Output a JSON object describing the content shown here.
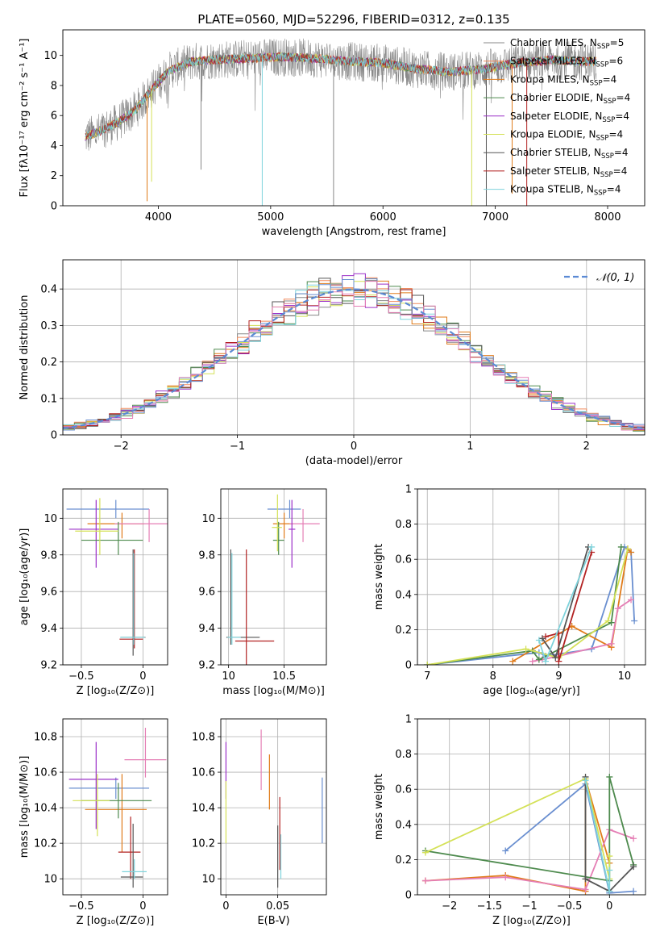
{
  "chart_data": [
    {
      "id": "spectrum",
      "type": "line",
      "title": "PLATE=0560, MJD=52296, FIBERID=0312, z=0.135",
      "xlabel": "wavelength [Angstrom, rest frame]",
      "ylabel": "Flux [fλ10⁻¹⁷ erg cm⁻² s⁻¹ A⁻¹]",
      "xlim": [
        3150,
        8330
      ],
      "ylim": [
        0,
        11.7
      ],
      "xticks": [
        4000,
        5000,
        6000,
        7000,
        8000
      ],
      "yticks": [
        0,
        2,
        4,
        6,
        8,
        10
      ],
      "grid": false,
      "legend": "upper-right",
      "legend_entries": [
        {
          "label": "Chabrier MILES, N",
          "sub": "SSP",
          "suffix": "=5",
          "color": "#888888"
        },
        {
          "label": "Salpeter MILES, N",
          "sub": "SSP",
          "suffix": "=6",
          "color": "#f08a5d"
        },
        {
          "label": "Kroupa MILES, N",
          "sub": "SSP",
          "suffix": "=4",
          "color": "#e07b1a"
        },
        {
          "label": "Chabrier ELODIE, N",
          "sub": "SSP",
          "suffix": "=4",
          "color": "#4d8a4d"
        },
        {
          "label": "Salpeter ELODIE, N",
          "sub": "SSP",
          "suffix": "=4",
          "color": "#9b30c8"
        },
        {
          "label": "Kroupa ELODIE, N",
          "sub": "SSP",
          "suffix": "=4",
          "color": "#d4e157"
        },
        {
          "label": "Chabrier STELIB, N",
          "sub": "SSP",
          "suffix": "=4",
          "color": "#555555"
        },
        {
          "label": "Salpeter STELIB, N",
          "sub": "SSP",
          "suffix": "=4",
          "color": "#b22222"
        },
        {
          "label": "Kroupa STELIB, N",
          "sub": "SSP",
          "suffix": "=4",
          "color": "#7fd3dc"
        }
      ],
      "spectrum_profile": {
        "x": [
          3350,
          3500,
          3650,
          3800,
          3950,
          4100,
          4300,
          4500,
          4800,
          5100,
          5400,
          5700,
          6000,
          6300,
          6600,
          6900,
          7200,
          7500,
          7800,
          7900
        ],
        "y": [
          4.6,
          5.0,
          5.6,
          6.4,
          7.8,
          9.0,
          9.6,
          9.7,
          9.8,
          9.9,
          9.8,
          9.6,
          9.5,
          9.1,
          8.9,
          9.1,
          9.5,
          9.7,
          9.6,
          9.6
        ]
      },
      "absorption_lines": [
        {
          "x": 3900,
          "y": 0.3
        },
        {
          "x": 3940,
          "y": 1.6
        },
        {
          "x": 4380,
          "y": 2.4
        },
        {
          "x": 4925,
          "y": 0
        },
        {
          "x": 5560,
          "y": 0
        },
        {
          "x": 6790,
          "y": 0
        },
        {
          "x": 6920,
          "y": 0
        },
        {
          "x": 7150,
          "y": 0.8
        },
        {
          "x": 7280,
          "y": 0
        }
      ]
    },
    {
      "id": "residuals",
      "type": "histogram",
      "xlabel": "(data-model)/error",
      "ylabel": "Normed distribution",
      "xlim": [
        -2.5,
        2.5
      ],
      "ylim": [
        0,
        0.48
      ],
      "xticks": [
        -2,
        -1,
        0,
        1,
        2
      ],
      "yticks": [
        0.0,
        0.1,
        0.2,
        0.3,
        0.4
      ],
      "grid": true,
      "legend": "upper-right",
      "legend_label": "𝒩(0, 1)",
      "bin_width": 0.1,
      "colors": [
        "#888888",
        "#f08a5d",
        "#e07b1a",
        "#4d8a4d",
        "#9b30c8",
        "#d4e157",
        "#555555",
        "#b22222",
        "#7fd3dc",
        "#6a8fd0",
        "#e57fb5"
      ]
    },
    {
      "id": "age-vs-Z",
      "type": "errorbar",
      "xlabel": "Z [log₁₀(Z/Z⊙)]",
      "ylabel": "age [log₁₀(age/yr)]",
      "xlim": [
        -0.65,
        0.2
      ],
      "ylim": [
        9.2,
        10.16
      ],
      "xticks": [
        -0.5,
        0.0
      ],
      "yticks": [
        9.2,
        9.4,
        9.6,
        9.8,
        10.0
      ],
      "grid": true,
      "points": [
        {
          "x": -0.22,
          "y": 10.05,
          "xerr": [
            0.4,
            0.27
          ],
          "yerr": [
            0.05,
            0.05
          ],
          "color": "#6a8fd0"
        },
        {
          "x": -0.17,
          "y": 9.97,
          "xerr": [
            0.28,
            0.18
          ],
          "yerr": [
            0.08,
            0.06
          ],
          "color": "#e07b1a"
        },
        {
          "x": 0.05,
          "y": 9.97,
          "xerr": [
            0.28,
            0.15
          ],
          "yerr": [
            0.1,
            0.08
          ],
          "color": "#e57fb5"
        },
        {
          "x": -0.38,
          "y": 9.94,
          "xerr": [
            0.22,
            0.18
          ],
          "yerr": [
            0.21,
            0.16
          ],
          "color": "#9b30c8"
        },
        {
          "x": -0.2,
          "y": 9.88,
          "xerr": [
            0.3,
            0.2
          ],
          "yerr": [
            0.08,
            0.1
          ],
          "color": "#4d8a4d"
        },
        {
          "x": -0.35,
          "y": 9.93,
          "xerr": [
            0.2,
            0.15
          ],
          "yerr": [
            0.13,
            0.18
          ],
          "color": "#d4e157"
        },
        {
          "x": -0.08,
          "y": 9.35,
          "xerr": [
            0.1,
            0.1
          ],
          "yerr": [
            0.1,
            0.48
          ],
          "color": "#555555"
        },
        {
          "x": -0.07,
          "y": 9.34,
          "xerr": [
            0.12,
            0.07
          ],
          "yerr": [
            0.05,
            0.49
          ],
          "color": "#b22222"
        },
        {
          "x": -0.075,
          "y": 9.35,
          "xerr": [
            0.11,
            0.09
          ],
          "yerr": [
            0.04,
            0.46
          ],
          "color": "#7fd3dc"
        }
      ]
    },
    {
      "id": "age-vs-mass",
      "type": "errorbar",
      "xlabel": "mass [log₁₀(M/M⊙)]",
      "ylabel": "",
      "xlim": [
        9.93,
        10.88
      ],
      "ylim": [
        9.2,
        10.16
      ],
      "xticks": [
        10.0,
        10.5
      ],
      "yticks": [
        9.2,
        9.4,
        9.6,
        9.8,
        10.0
      ],
      "grid": true,
      "points": [
        {
          "x": 10.55,
          "y": 10.05,
          "xerr": [
            0.2,
            0.1
          ],
          "yerr": [
            0.05,
            0.05
          ],
          "color": "#6a8fd0"
        },
        {
          "x": 10.5,
          "y": 9.97,
          "xerr": [
            0.1,
            0.08
          ],
          "yerr": [
            0.08,
            0.06
          ],
          "color": "#e07b1a"
        },
        {
          "x": 10.67,
          "y": 9.97,
          "xerr": [
            0.12,
            0.15
          ],
          "yerr": [
            0.1,
            0.08
          ],
          "color": "#e57fb5"
        },
        {
          "x": 10.57,
          "y": 9.94,
          "xerr": [
            0.03,
            0.03
          ],
          "yerr": [
            0.21,
            0.16
          ],
          "color": "#9b30c8"
        },
        {
          "x": 10.45,
          "y": 9.88,
          "xerr": [
            0.05,
            0.05
          ],
          "yerr": [
            0.08,
            0.1
          ],
          "color": "#4d8a4d"
        },
        {
          "x": 10.44,
          "y": 9.95,
          "xerr": [
            0.05,
            0.04
          ],
          "yerr": [
            0.13,
            0.18
          ],
          "color": "#d4e157"
        },
        {
          "x": 10.02,
          "y": 9.35,
          "xerr": [
            0.04,
            0.26
          ],
          "yerr": [
            0.04,
            0.48
          ],
          "color": "#555555"
        },
        {
          "x": 10.16,
          "y": 9.33,
          "xerr": [
            0.1,
            0.25
          ],
          "yerr": [
            0.5,
            0.5
          ],
          "color": "#b22222"
        },
        {
          "x": 10.03,
          "y": 9.35,
          "xerr": [
            0.04,
            0.08
          ],
          "yerr": [
            0.04,
            0.46
          ],
          "color": "#7fd3dc"
        }
      ]
    },
    {
      "id": "weight-vs-age",
      "type": "line",
      "xlabel": "age  [log₁₀(age/yr)]",
      "ylabel": "mass weight",
      "xlim": [
        6.85,
        10.32
      ],
      "ylim": [
        0,
        1.0
      ],
      "xticks": [
        7,
        8,
        9,
        10
      ],
      "yticks": [
        0.0,
        0.2,
        0.4,
        0.6,
        0.8,
        1.0
      ],
      "grid": true,
      "series": [
        {
          "color": "#6a8fd0",
          "x": [
            7.0,
            8.7,
            8.8,
            9.5,
            10.0,
            10.1,
            10.15
          ],
          "y": [
            0.0,
            0.07,
            0.05,
            0.09,
            0.67,
            0.64,
            0.25
          ]
        },
        {
          "color": "#e07b1a",
          "x": [
            8.3,
            9.2,
            9.8,
            10.05,
            10.1
          ],
          "y": [
            0.02,
            0.22,
            0.1,
            0.66,
            0.64
          ]
        },
        {
          "color": "#e57fb5",
          "x": [
            8.6,
            8.75,
            9.0,
            9.8,
            9.9,
            10.1
          ],
          "y": [
            0.02,
            0.03,
            0.05,
            0.12,
            0.32,
            0.37
          ]
        },
        {
          "color": "#4d8a4d",
          "x": [
            7.0,
            8.6,
            8.7,
            9.8,
            9.95
          ],
          "y": [
            0.0,
            0.08,
            0.03,
            0.24,
            0.67
          ]
        },
        {
          "color": "#d4e157",
          "x": [
            7.0,
            8.5,
            9.0,
            9.75,
            10.05
          ],
          "y": [
            0.0,
            0.09,
            0.04,
            0.25,
            0.66
          ]
        },
        {
          "color": "#b22222",
          "x": [
            8.8,
            9.0,
            9.0,
            9.5
          ],
          "y": [
            0.16,
            0.18,
            0.02,
            0.64
          ]
        },
        {
          "color": "#555555",
          "x": [
            8.75,
            8.95,
            9.45
          ],
          "y": [
            0.15,
            0.04,
            0.67
          ]
        },
        {
          "color": "#7fd3dc",
          "x": [
            8.7,
            8.8,
            9.5
          ],
          "y": [
            0.14,
            0.02,
            0.67
          ]
        }
      ]
    },
    {
      "id": "mass-vs-Z",
      "type": "errorbar",
      "xlabel": "Z [log₁₀(Z/Z⊙)]",
      "ylabel": "mass [log₁₀(M/M⊙)]",
      "xlim": [
        -0.65,
        0.2
      ],
      "ylim": [
        9.91,
        10.9
      ],
      "xticks": [
        -0.5,
        0.0
      ],
      "yticks": [
        10.0,
        10.2,
        10.4,
        10.6,
        10.8
      ],
      "grid": true,
      "points": [
        {
          "x": -0.22,
          "y": 10.51,
          "xerr": [
            0.38,
            0.27
          ],
          "yerr": [
            0.06,
            0.06
          ],
          "color": "#6a8fd0"
        },
        {
          "x": -0.17,
          "y": 10.39,
          "xerr": [
            0.3,
            0.2
          ],
          "yerr": [
            0.24,
            0.2
          ],
          "color": "#e07b1a"
        },
        {
          "x": 0.02,
          "y": 10.67,
          "xerr": [
            0.17,
            0.17
          ],
          "yerr": [
            0.1,
            0.18
          ],
          "color": "#e57fb5"
        },
        {
          "x": -0.38,
          "y": 10.56,
          "xerr": [
            0.22,
            0.18
          ],
          "yerr": [
            0.28,
            0.21
          ],
          "color": "#9b30c8"
        },
        {
          "x": -0.2,
          "y": 10.44,
          "xerr": [
            0.3,
            0.27
          ],
          "yerr": [
            0.1,
            0.1
          ],
          "color": "#4d8a4d"
        },
        {
          "x": -0.37,
          "y": 10.44,
          "xerr": [
            0.2,
            0.1
          ],
          "yerr": [
            0.2,
            0.15
          ],
          "color": "#d4e157"
        },
        {
          "x": -0.1,
          "y": 10.15,
          "xerr": [
            0.1,
            0.08
          ],
          "yerr": [
            0.15,
            0.2
          ],
          "color": "#b22222"
        },
        {
          "x": -0.08,
          "y": 10.01,
          "xerr": [
            0.1,
            0.08
          ],
          "yerr": [
            0.06,
            0.3
          ],
          "color": "#555555"
        },
        {
          "x": -0.07,
          "y": 10.04,
          "xerr": [
            0.1,
            0.1
          ],
          "yerr": [
            0.04,
            0.07
          ],
          "color": "#7fd3dc"
        }
      ]
    },
    {
      "id": "mass-vs-EBV",
      "type": "errorbar",
      "xlabel": "E(B-V)",
      "ylabel": "",
      "xlim": [
        -0.005,
        0.097
      ],
      "ylim": [
        9.91,
        10.9
      ],
      "xticks": [
        0.0,
        0.05
      ],
      "yticks": [
        10.0,
        10.2,
        10.4,
        10.6,
        10.8
      ],
      "grid": true,
      "points": [
        {
          "x": 0.0,
          "y": 10.6,
          "xerr": [
            0,
            0
          ],
          "yerr": [
            0.15,
            0.17
          ],
          "color": "#9b30c8"
        },
        {
          "x": 0.0,
          "y": 10.4,
          "xerr": [
            0,
            0
          ],
          "yerr": [
            0.2,
            0.15
          ],
          "color": "#d4e157"
        },
        {
          "x": 0.034,
          "y": 10.6,
          "xerr": [
            0,
            0
          ],
          "yerr": [
            0.1,
            0.24
          ],
          "color": "#e57fb5"
        },
        {
          "x": 0.042,
          "y": 10.55,
          "xerr": [
            0,
            0
          ],
          "yerr": [
            0.16,
            0.15
          ],
          "color": "#e07b1a"
        },
        {
          "x": 0.05,
          "y": 10.13,
          "xerr": [
            0,
            0
          ],
          "yerr": [
            0.18,
            0.17
          ],
          "color": "#555555"
        },
        {
          "x": 0.052,
          "y": 10.3,
          "xerr": [
            0,
            0
          ],
          "yerr": [
            0.25,
            0.16
          ],
          "color": "#b22222"
        },
        {
          "x": 0.053,
          "y": 10.15,
          "xerr": [
            0,
            0
          ],
          "yerr": [
            0.15,
            0.1
          ],
          "color": "#7fd3dc"
        },
        {
          "x": 0.093,
          "y": 10.38,
          "xerr": [
            0,
            0
          ],
          "yerr": [
            0.18,
            0.19
          ],
          "color": "#6a8fd0"
        }
      ]
    },
    {
      "id": "weight-vs-Z",
      "type": "line",
      "xlabel": "Z [log₁₀(Z/Z⊙)]",
      "ylabel": "mass weight",
      "xlim": [
        -2.4,
        0.45
      ],
      "ylim": [
        0,
        1.0
      ],
      "xticks": [
        -2.0,
        -1.5,
        -1.0,
        -0.5,
        0.0
      ],
      "yticks": [
        0.0,
        0.2,
        0.4,
        0.6,
        0.8,
        1.0
      ],
      "grid": true,
      "series": [
        {
          "color": "#6a8fd0",
          "x": [
            -1.3,
            -0.3,
            0.0,
            0.3
          ],
          "y": [
            0.25,
            0.63,
            0.01,
            0.02
          ]
        },
        {
          "color": "#e07b1a",
          "x": [
            -2.3,
            -1.3,
            -0.3,
            -0.3,
            0.0
          ],
          "y": [
            0.08,
            0.11,
            0.02,
            0.66,
            0.18
          ]
        },
        {
          "color": "#e57fb5",
          "x": [
            -2.3,
            -1.3,
            -0.3,
            0.0,
            0.3
          ],
          "y": [
            0.08,
            0.1,
            0.03,
            0.37,
            0.32
          ]
        },
        {
          "color": "#4d8a4d",
          "x": [
            -2.3,
            0.0,
            0.0,
            0.3
          ],
          "y": [
            0.25,
            0.08,
            0.67,
            0.17
          ]
        },
        {
          "color": "#d4e157",
          "x": [
            -2.3,
            -0.3,
            0.0,
            0.0
          ],
          "y": [
            0.24,
            0.66,
            0.09,
            0.22
          ]
        },
        {
          "color": "#555555",
          "x": [
            -0.3,
            -0.3,
            0.0,
            0.3
          ],
          "y": [
            0.67,
            0.09,
            0.02,
            0.16
          ]
        },
        {
          "color": "#7fd3dc",
          "x": [
            -0.3,
            0.0,
            0.0
          ],
          "y": [
            0.65,
            0.02,
            0.14
          ]
        }
      ]
    }
  ]
}
